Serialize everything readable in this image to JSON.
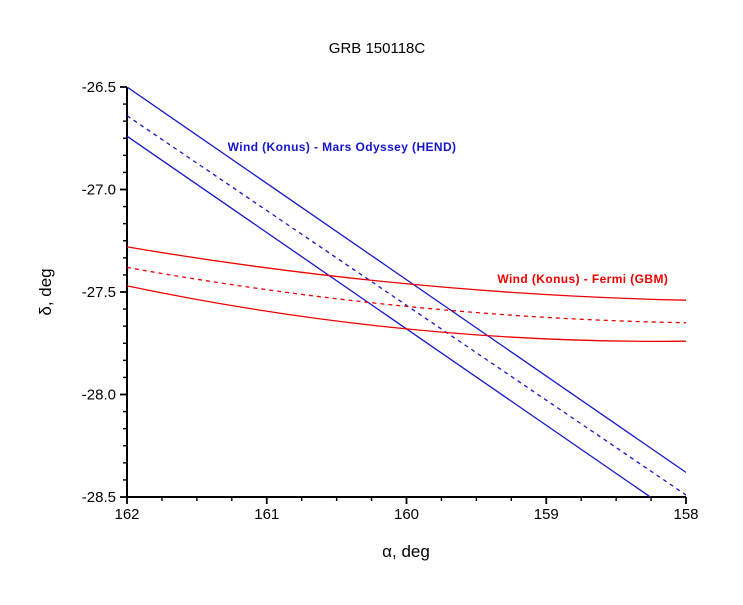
{
  "title": "GRB 150118C",
  "chart_data": {
    "type": "line",
    "title": "GRB 150118C",
    "xlabel": "α, deg",
    "ylabel": "δ, deg",
    "grid": false,
    "legend": "none (inline annotations)",
    "x_axis": {
      "label": "α, deg",
      "min": 158,
      "max": 162,
      "reversed": true,
      "major_ticks": [
        162,
        161,
        160,
        159,
        158
      ],
      "major_tick_labels": [
        "162",
        "161",
        "160",
        "159",
        "158"
      ],
      "minor_ticks_per_interval": 3
    },
    "y_axis": {
      "label": "δ, deg",
      "min": -28.5,
      "max": -26.5,
      "major_ticks": [
        -26.5,
        -27.0,
        -27.5,
        -28.0,
        -28.5
      ],
      "major_tick_labels": [
        "-26.5",
        "-27.0",
        "-27.5",
        "-28.0",
        "-28.5"
      ],
      "minor_ticks_per_interval": 5
    },
    "colors": {
      "konus_hend": "#1515cd",
      "konus_gbm": "#ee0000",
      "axis": "#000000"
    },
    "series": [
      {
        "id": "konus-hend-annulus-upper",
        "group": "Wind (Konus) - Mars Odyssey (HEND)",
        "color": "#1515cd",
        "style": "solid",
        "points": [
          [
            162,
            -26.5
          ],
          [
            158,
            -28.38
          ]
        ]
      },
      {
        "id": "konus-hend-annulus-center",
        "group": "Wind (Konus) - Mars Odyssey (HEND)",
        "color": "#1515cd",
        "style": "dashed",
        "points": [
          [
            162,
            -26.64
          ],
          [
            158,
            -28.49
          ]
        ]
      },
      {
        "id": "konus-hend-annulus-lower",
        "group": "Wind (Konus) - Mars Odyssey (HEND)",
        "color": "#1515cd",
        "style": "solid",
        "points": [
          [
            162,
            -26.74
          ],
          [
            158,
            -28.62
          ]
        ]
      },
      {
        "id": "konus-gbm-annulus-upper",
        "group": "Wind (Konus) - Fermi (GBM)",
        "color": "#ee0000",
        "style": "solid",
        "points": [
          [
            162,
            -27.28
          ],
          [
            160,
            -27.46
          ],
          [
            158,
            -27.54
          ]
        ]
      },
      {
        "id": "konus-gbm-annulus-center",
        "group": "Wind (Konus) - Fermi (GBM)",
        "color": "#ee0000",
        "style": "dashed",
        "points": [
          [
            162,
            -27.38
          ],
          [
            160,
            -27.57
          ],
          [
            158,
            -27.65
          ]
        ]
      },
      {
        "id": "konus-gbm-annulus-lower",
        "group": "Wind (Konus) - Fermi (GBM)",
        "color": "#ee0000",
        "style": "solid",
        "points": [
          [
            162,
            -27.47
          ],
          [
            160,
            -27.68
          ],
          [
            158,
            -27.74
          ]
        ]
      }
    ],
    "annotations": [
      {
        "id": "label-konus-hend",
        "text": "Wind (Konus) - Mars Odyssey (HEND)",
        "color": "#1515cd",
        "alpha": 161.28,
        "delta": -26.76
      },
      {
        "id": "label-konus-gbm",
        "text": "Wind (Konus) - Fermi (GBM)",
        "color": "#ee0000",
        "alpha": 159.35,
        "delta": -27.4
      }
    ]
  }
}
